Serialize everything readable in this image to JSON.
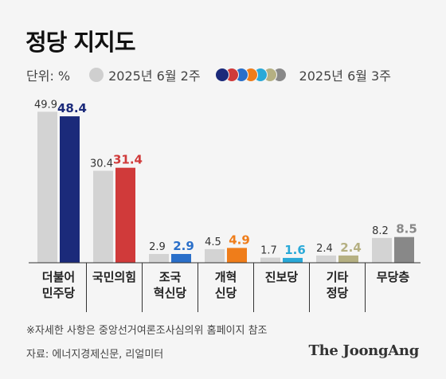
{
  "title": "정당 지지도",
  "legend": {
    "unit": "단위: %",
    "prev_label": "2025년 6월 2주",
    "cur_label": "2025년 6월 3주",
    "cur_colors": [
      "#1b2a7a",
      "#d03a3a",
      "#2a6fc9",
      "#ef7d1a",
      "#29a9d8",
      "#b5b082",
      "#888888"
    ]
  },
  "chart_data": {
    "type": "bar",
    "categories": [
      [
        "더불어",
        "민주당"
      ],
      [
        "국민의힘"
      ],
      [
        "조국",
        "혁신당"
      ],
      [
        "개혁",
        "신당"
      ],
      [
        "진보당"
      ],
      [
        "기타",
        "정당"
      ],
      [
        "무당층"
      ]
    ],
    "series": [
      {
        "name": "2025년 6월 2주",
        "values": [
          49.9,
          30.4,
          2.9,
          4.5,
          1.7,
          2.4,
          8.2
        ],
        "color": "#d3d3d3"
      },
      {
        "name": "2025년 6월 3주",
        "values": [
          48.4,
          31.4,
          2.9,
          4.9,
          1.6,
          2.4,
          8.5
        ],
        "colors": [
          "#1b2a7a",
          "#d03a3a",
          "#2a6fc9",
          "#ef7d1a",
          "#29a9d8",
          "#b5b082",
          "#888888"
        ]
      }
    ],
    "value_labels": {
      "prev": [
        "49.9",
        "30.4",
        "2.9",
        "4.5",
        "1.7",
        "2.4",
        "8.2"
      ],
      "cur": [
        "48.4",
        "31.4",
        "2.9",
        "4.9",
        "1.6",
        "2.4",
        "8.5"
      ]
    },
    "ylim": [
      0,
      50
    ],
    "grid": false,
    "legend_position": "top-left"
  },
  "footnote": "※자세한 사항은 중앙선거여론조사심의위 홈페이지 참조",
  "source": "자료: 에너지경제신문, 리얼미터",
  "brand": "The JoongAng"
}
